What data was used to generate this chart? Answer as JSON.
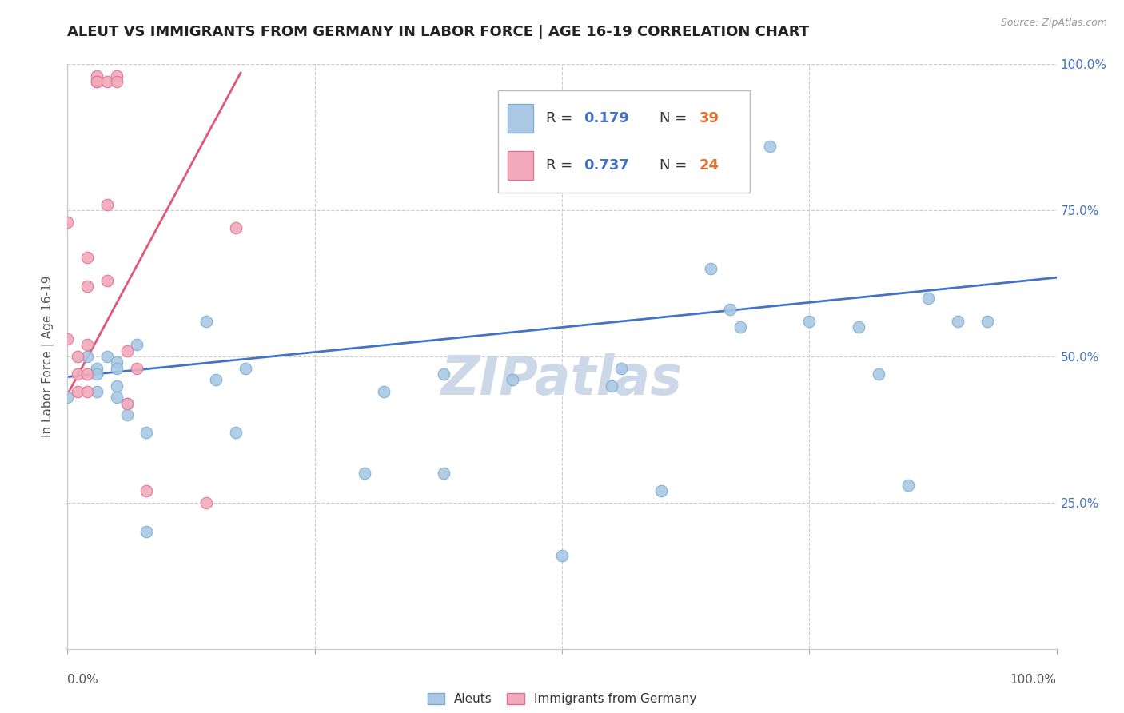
{
  "title": "ALEUT VS IMMIGRANTS FROM GERMANY IN LABOR FORCE | AGE 16-19 CORRELATION CHART",
  "source": "Source: ZipAtlas.com",
  "ylabel": "In Labor Force | Age 16-19",
  "xlim": [
    0,
    1.0
  ],
  "ylim": [
    0,
    1.0
  ],
  "grid_ticks": [
    0.25,
    0.5,
    0.75,
    1.0
  ],
  "right_yticklabels": [
    "25.0%",
    "50.0%",
    "75.0%",
    "100.0%"
  ],
  "aleut_x": [
    0.0,
    0.02,
    0.03,
    0.03,
    0.03,
    0.04,
    0.05,
    0.05,
    0.05,
    0.05,
    0.06,
    0.06,
    0.07,
    0.08,
    0.08,
    0.14,
    0.15,
    0.17,
    0.18,
    0.3,
    0.32,
    0.38,
    0.38,
    0.45,
    0.5,
    0.55,
    0.56,
    0.6,
    0.65,
    0.67,
    0.68,
    0.71,
    0.75,
    0.8,
    0.82,
    0.85,
    0.87,
    0.9,
    0.93
  ],
  "aleut_y": [
    0.43,
    0.5,
    0.48,
    0.47,
    0.44,
    0.5,
    0.49,
    0.48,
    0.45,
    0.43,
    0.42,
    0.4,
    0.52,
    0.37,
    0.2,
    0.56,
    0.46,
    0.37,
    0.48,
    0.3,
    0.44,
    0.47,
    0.3,
    0.46,
    0.16,
    0.45,
    0.48,
    0.27,
    0.65,
    0.58,
    0.55,
    0.86,
    0.56,
    0.55,
    0.47,
    0.28,
    0.6,
    0.56,
    0.56
  ],
  "germany_x": [
    0.0,
    0.0,
    0.01,
    0.01,
    0.01,
    0.02,
    0.02,
    0.02,
    0.02,
    0.02,
    0.03,
    0.03,
    0.03,
    0.04,
    0.04,
    0.04,
    0.05,
    0.05,
    0.06,
    0.06,
    0.07,
    0.08,
    0.14,
    0.17
  ],
  "germany_y": [
    0.73,
    0.53,
    0.5,
    0.47,
    0.44,
    0.67,
    0.62,
    0.52,
    0.47,
    0.44,
    0.98,
    0.97,
    0.97,
    0.97,
    0.76,
    0.63,
    0.98,
    0.97,
    0.51,
    0.42,
    0.48,
    0.27,
    0.25,
    0.72
  ],
  "aleut_line_x": [
    0.0,
    1.0
  ],
  "aleut_line_y": [
    0.465,
    0.635
  ],
  "germany_line_x": [
    0.0,
    0.175
  ],
  "germany_line_y": [
    0.435,
    0.985
  ],
  "dot_size": 110,
  "aleut_color": "#aac8e4",
  "aleut_edge_color": "#7aaed0",
  "germany_color": "#f2aabb",
  "germany_edge_color": "#e07090",
  "aleut_line_color": "#4472c4",
  "germany_line_color": "#e05878",
  "grid_color": "#cccccc",
  "background_color": "#ffffff",
  "watermark": "ZIPatlas",
  "watermark_color": "#ccd8e8",
  "title_fontsize": 13,
  "axis_label_fontsize": 11,
  "tick_fontsize": 11,
  "legend_fontsize": 13,
  "r_value_color": "#4472c4",
  "n_value_color": "#e07030"
}
